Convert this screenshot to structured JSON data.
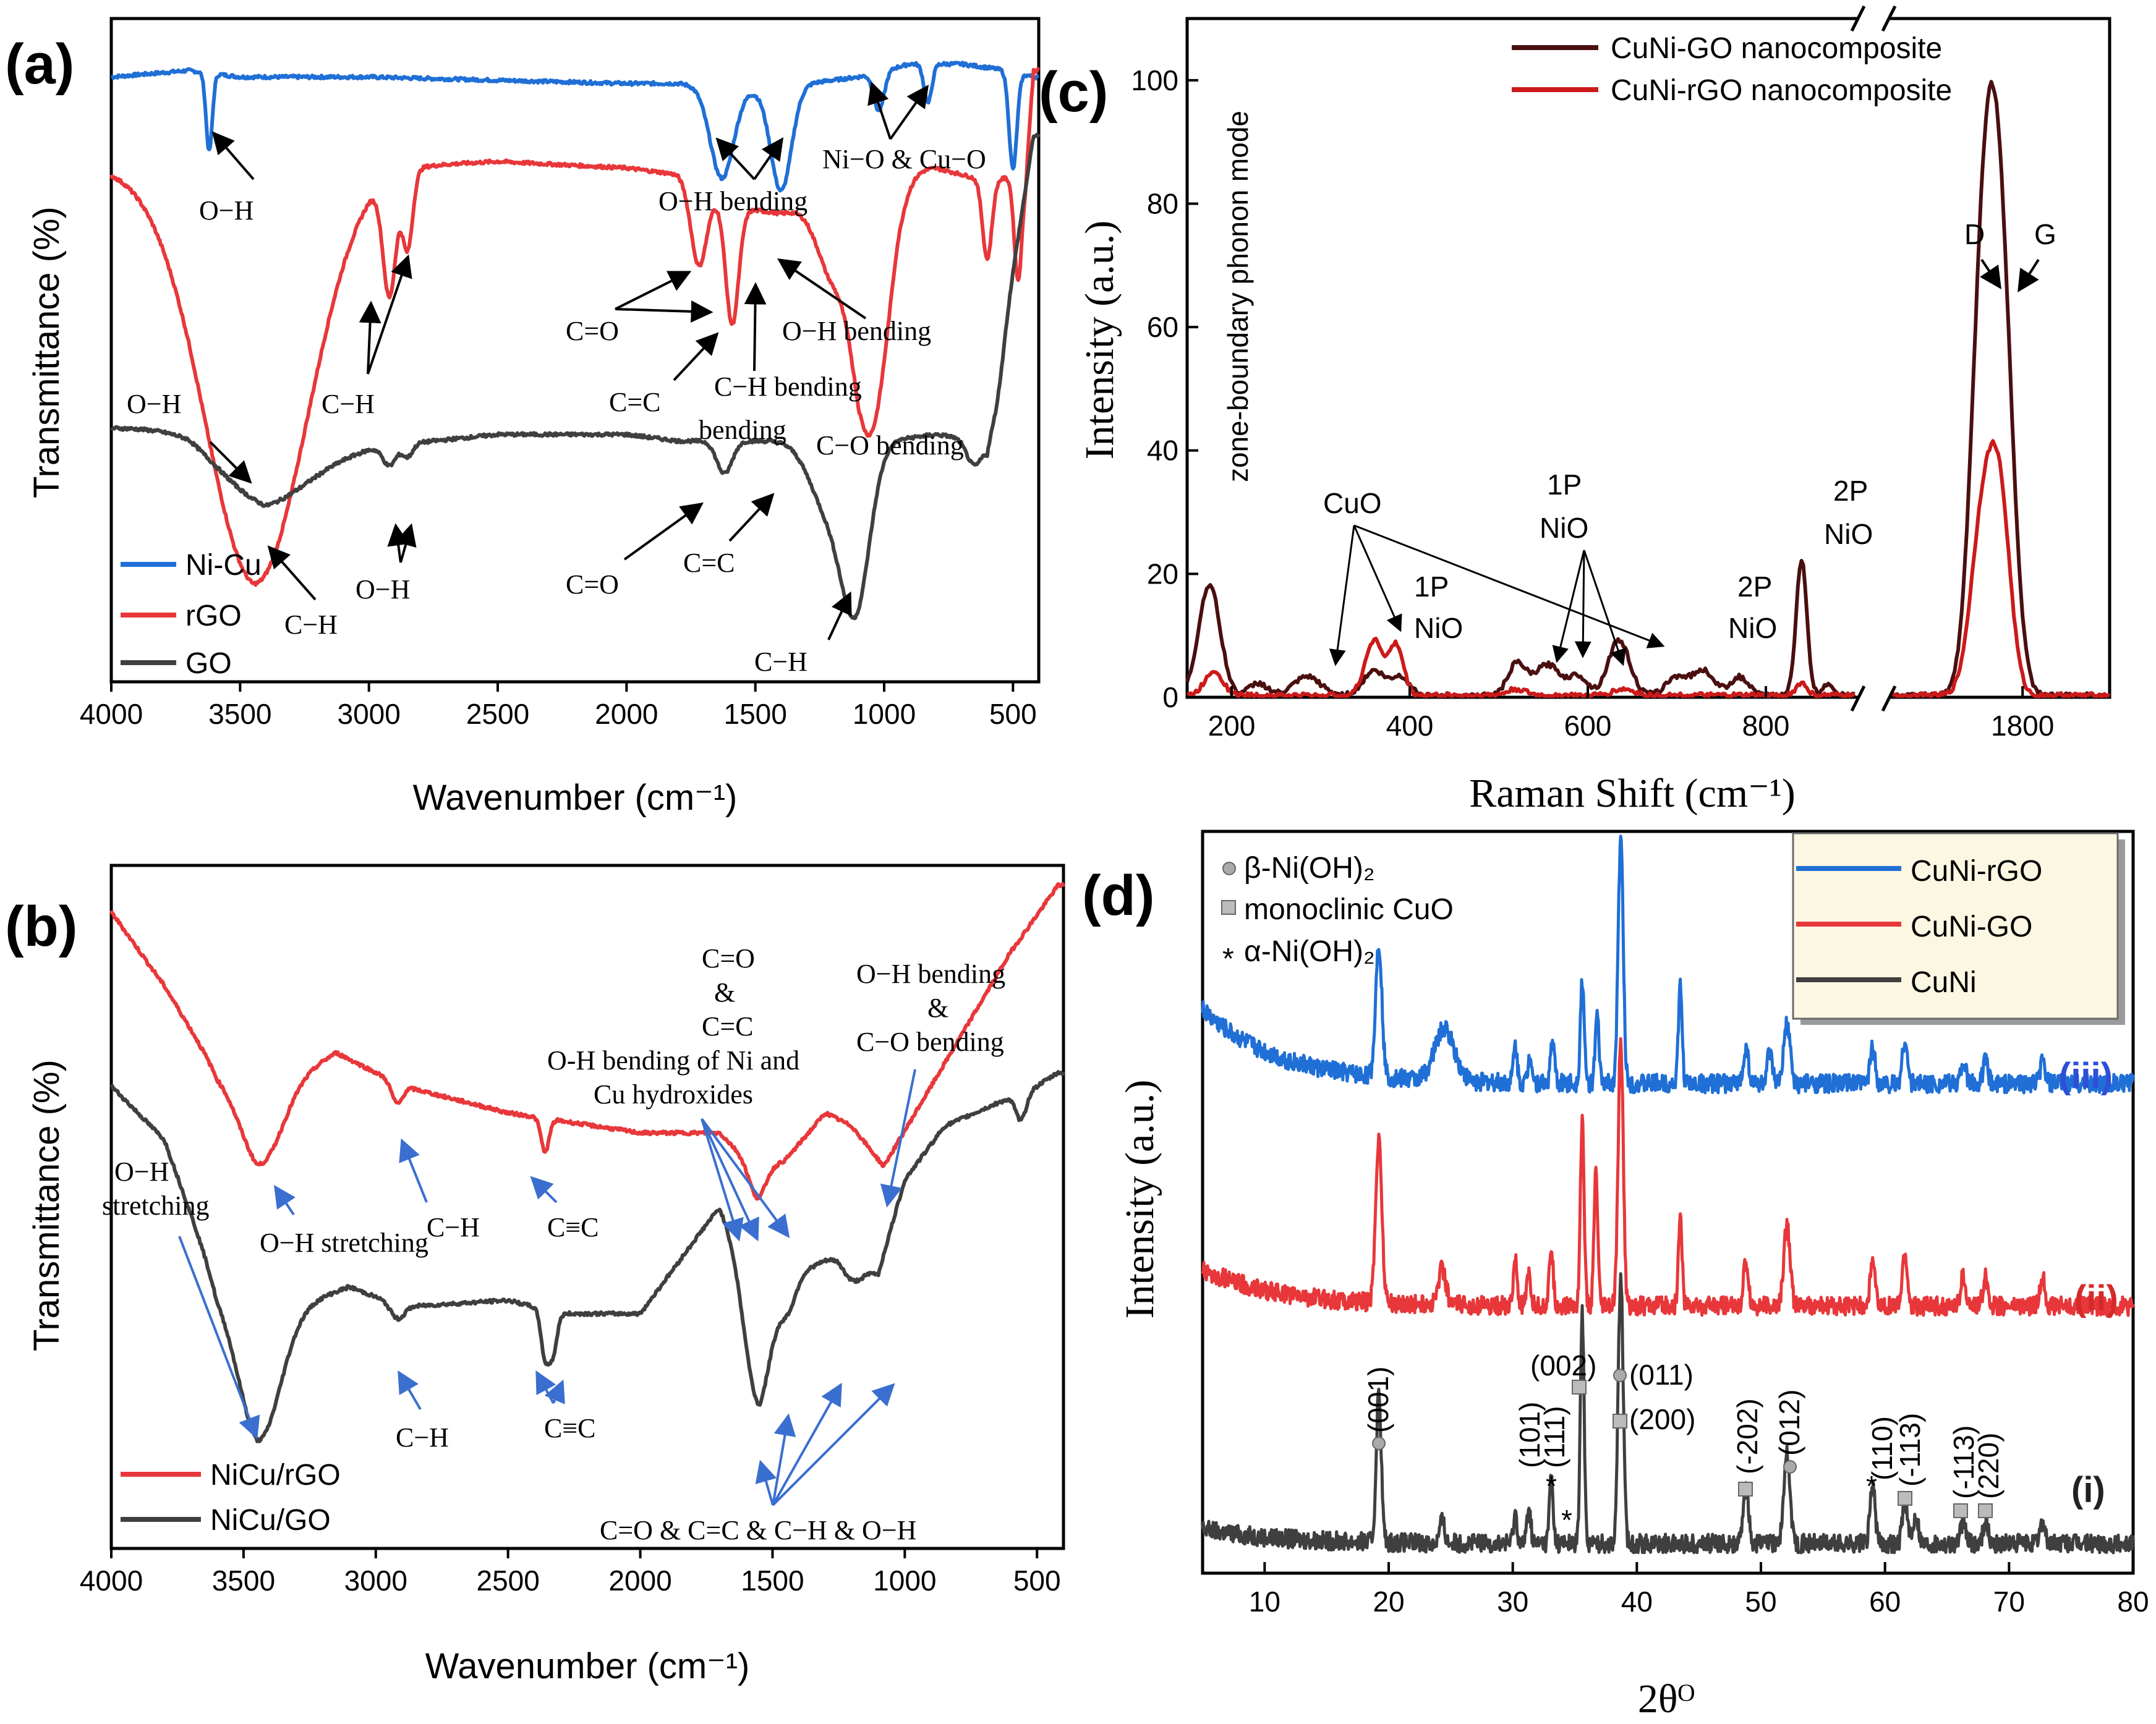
{
  "chart_data": [
    {
      "id": "a",
      "type": "line",
      "panel_label": "(a)",
      "xlabel": "Wavenumber (cm⁻¹)",
      "ylabel": "Transmittance (%)",
      "xlim": [
        4000,
        400
      ],
      "x_ticks": [
        "4000",
        "3500",
        "3000",
        "2500",
        "2000",
        "1500",
        "1000",
        "500"
      ],
      "legend_position": "bottom-left",
      "series": [
        {
          "name": "Ni-Cu",
          "color": "#1f6fd6",
          "offset": 90,
          "baseline": [
            [
              4000,
              94
            ],
            [
              3700,
              95
            ],
            [
              3500,
              94
            ],
            [
              3000,
              94
            ],
            [
              2000,
              93
            ],
            [
              1800,
              93
            ],
            [
              1500,
              92
            ],
            [
              1100,
              94
            ],
            [
              900,
              96
            ],
            [
              700,
              96
            ],
            [
              520,
              95
            ],
            [
              420,
              94
            ]
          ],
          "peaks": [
            [
              3620,
              12,
              12
            ],
            [
              1630,
              14,
              45
            ],
            [
              1400,
              16,
              40
            ],
            [
              1020,
              6,
              20
            ],
            [
              830,
              6,
              15
            ],
            [
              500,
              15,
              15
            ]
          ]
        },
        {
          "name": "rGO",
          "color": "#e8373a",
          "offset": 60,
          "baseline": [
            [
              4000,
              80
            ],
            [
              3700,
              79
            ],
            [
              3450,
              76
            ],
            [
              3200,
              78
            ],
            [
              3000,
              80
            ],
            [
              2500,
              81
            ],
            [
              2000,
              80
            ],
            [
              1800,
              79
            ],
            [
              1600,
              74
            ],
            [
              1400,
              73
            ],
            [
              1250,
              74
            ],
            [
              1100,
              70
            ],
            [
              950,
              80
            ],
            [
              800,
              80
            ],
            [
              600,
              78
            ],
            [
              450,
              79
            ],
            [
              420,
              95
            ]
          ],
          "peaks": [
            [
              3440,
              60,
              200
            ],
            [
              2920,
              18,
              25
            ],
            [
              2850,
              12,
              20
            ],
            [
              1720,
              12,
              30
            ],
            [
              1590,
              18,
              25
            ],
            [
              1220,
              8,
              50
            ],
            [
              1050,
              34,
              70
            ],
            [
              600,
              12,
              18
            ],
            [
              480,
              16,
              15
            ]
          ]
        },
        {
          "name": "GO",
          "color": "#3f3f3f",
          "offset": 30,
          "baseline": [
            [
              4000,
              40
            ],
            [
              3700,
              40
            ],
            [
              3500,
              36
            ],
            [
              3400,
              34
            ],
            [
              3000,
              37
            ],
            [
              2500,
              39
            ],
            [
              2000,
              39
            ],
            [
              1800,
              38
            ],
            [
              1400,
              38
            ],
            [
              1300,
              38
            ],
            [
              1000,
              38
            ],
            [
              800,
              39
            ],
            [
              600,
              38
            ],
            [
              420,
              85
            ]
          ],
          "peaks": [
            [
              3420,
              6,
              180
            ],
            [
              2920,
              3,
              25
            ],
            [
              2850,
              2,
              20
            ],
            [
              1620,
              5,
              30
            ],
            [
              1220,
              10,
              70
            ],
            [
              1110,
              24,
              55
            ],
            [
              650,
              4,
              30
            ],
            [
              560,
              4,
              25
            ]
          ]
        }
      ],
      "annotations": [
        "O−H",
        "O−H bending",
        "Ni−O & Cu−O",
        "C−H",
        "C=O",
        "C=C",
        "C−H bending",
        "O−H bending",
        "O−H",
        "C−O bending",
        "C−H",
        "O−H",
        "C=O",
        "C=C",
        "C−H"
      ]
    },
    {
      "id": "b",
      "type": "line",
      "panel_label": "(b)",
      "xlabel": "Wavenumber (cm⁻¹)",
      "ylabel": "Transmittance (%)",
      "xlim": [
        4000,
        400
      ],
      "x_ticks": [
        "4000",
        "3500",
        "3000",
        "2500",
        "2000",
        "1500",
        "1000",
        "500"
      ],
      "legend_position": "bottom-left",
      "series": [
        {
          "name": "NiCu/rGO",
          "color": "#e8373a",
          "baseline": [
            [
              4000,
              96
            ],
            [
              3800,
              85
            ],
            [
              3600,
              72
            ],
            [
              3450,
              68
            ],
            [
              3150,
              75
            ],
            [
              2900,
              70
            ],
            [
              2500,
              66
            ],
            [
              2000,
              63
            ],
            [
              1700,
              63
            ],
            [
              1550,
              57
            ],
            [
              1450,
              59
            ],
            [
              1300,
              66
            ],
            [
              1200,
              64
            ],
            [
              1080,
              58
            ],
            [
              900,
              70
            ],
            [
              600,
              90
            ],
            [
              420,
              100
            ]
          ],
          "peaks": [
            [
              3430,
              10,
              80
            ],
            [
              2920,
              3,
              20
            ],
            [
              2360,
              5,
              15
            ],
            [
              1560,
              4,
              30
            ]
          ]
        },
        {
          "name": "NiCu/GO",
          "color": "#3f3f3f",
          "baseline": [
            [
              4000,
              70
            ],
            [
              3800,
              62
            ],
            [
              3600,
              40
            ],
            [
              3450,
              35
            ],
            [
              3100,
              40
            ],
            [
              2900,
              37
            ],
            [
              2500,
              38
            ],
            [
              2300,
              36
            ],
            [
              2000,
              36
            ],
            [
              1700,
              52
            ],
            [
              1650,
              48
            ],
            [
              1550,
              38
            ],
            [
              1400,
              42
            ],
            [
              1250,
              45
            ],
            [
              1100,
              42
            ],
            [
              1000,
              56
            ],
            [
              850,
              64
            ],
            [
              500,
              70
            ],
            [
              420,
              72
            ]
          ],
          "peaks": [
            [
              3440,
              18,
              80
            ],
            [
              2920,
              2,
              25
            ],
            [
              2360,
              7,
              15
            ],
            [
              2330,
              6,
              15
            ],
            [
              1560,
              16,
              50
            ],
            [
              1440,
              4,
              30
            ],
            [
              1200,
              3,
              40
            ],
            [
              560,
              4,
              20
            ]
          ]
        }
      ],
      "annotations": [
        "O−H stretching",
        "C−H",
        "C≡C",
        "C=O",
        "&",
        "C=C",
        "O-H bending  of Ni and",
        "Cu hydroxides",
        "O−H bending",
        "&",
        "C−O bending",
        "O−H",
        "stretching",
        "C−H",
        "C≡C",
        "C=O & C=C & C−H & O−H"
      ]
    },
    {
      "id": "c",
      "type": "line",
      "panel_label": "(c)",
      "xlabel": "Raman Shift (cm⁻¹)",
      "ylabel": "Intensity (a.u.)",
      "ylim": [
        0,
        110
      ],
      "y_ticks": [
        "0",
        "20",
        "40",
        "60",
        "80",
        "100"
      ],
      "x_segments": [
        [
          150,
          900
        ],
        [
          1650,
          1900
        ]
      ],
      "x_ticks": [
        "200",
        "400",
        "600",
        "800",
        "1800"
      ],
      "legend_position": "top",
      "series": [
        {
          "name": "CuNi-GO nanocomposite",
          "color": "#4a0f0f",
          "peaks": [
            [
              175,
              18,
              12
            ],
            [
              230,
              2,
              10
            ],
            [
              285,
              3,
              15
            ],
            [
              360,
              4,
              12
            ],
            [
              390,
              3,
              10
            ],
            [
              520,
              5,
              10
            ],
            [
              555,
              5,
              15
            ],
            [
              590,
              3,
              10
            ],
            [
              635,
              9,
              12
            ],
            [
              700,
              3,
              12
            ],
            [
              730,
              4,
              12
            ],
            [
              770,
              3,
              10
            ],
            [
              840,
              22,
              6
            ],
            [
              870,
              2,
              6
            ],
            [
              1755,
              65,
              14
            ],
            [
              1775,
              63,
              14
            ]
          ]
        },
        {
          "name": "CuNi-rGO nanocomposite",
          "color": "#cc1a1a",
          "peaks": [
            [
              180,
              4,
              10
            ],
            [
              360,
              9,
              10
            ],
            [
              385,
              8,
              8
            ],
            [
              520,
              1,
              10
            ],
            [
              640,
              1,
              12
            ],
            [
              840,
              2,
              6
            ],
            [
              1755,
              29,
              14
            ],
            [
              1775,
              26,
              12
            ]
          ]
        }
      ],
      "annotations": [
        "zone-boundary phonon mode",
        "CuO",
        "1P",
        "NiO",
        "1P",
        "NiO",
        "2P",
        "NiO",
        "2P",
        "NiO",
        "D",
        "G"
      ]
    },
    {
      "id": "d",
      "type": "line",
      "panel_label": "(d)",
      "xlabel": "2θᴼ",
      "ylabel": "Intensity (a.u.)",
      "xlim": [
        5,
        80
      ],
      "x_ticks": [
        "10",
        "20",
        "30",
        "40",
        "50",
        "60",
        "70",
        "80"
      ],
      "legend_position": "top-right",
      "series": [
        {
          "name": "CuNi-rGO",
          "color": "#1f6fd6",
          "label": "(iii)",
          "baseline_level": 0.66,
          "peaks": [
            [
              19.2,
              0.18,
              0.25
            ],
            [
              24.5,
              0.07,
              0.8
            ],
            [
              30.2,
              0.05,
              0.15
            ],
            [
              31.4,
              0.04,
              0.15
            ],
            [
              33.2,
              0.06,
              0.15
            ],
            [
              35.6,
              0.14,
              0.15
            ],
            [
              36.8,
              0.09,
              0.15
            ],
            [
              38.7,
              0.33,
              0.2
            ],
            [
              43.5,
              0.13,
              0.15
            ],
            [
              48.8,
              0.05,
              0.2
            ],
            [
              50.7,
              0.04,
              0.2
            ],
            [
              52.1,
              0.08,
              0.25
            ],
            [
              59.0,
              0.05,
              0.2
            ],
            [
              61.6,
              0.06,
              0.2
            ],
            [
              66.3,
              0.03,
              0.2
            ],
            [
              68.1,
              0.03,
              0.2
            ],
            [
              72.7,
              0.03,
              0.2
            ]
          ]
        },
        {
          "name": "CuNi-GO",
          "color": "#e8373a",
          "label": "(ii)",
          "baseline_level": 0.36,
          "peaks": [
            [
              19.2,
              0.22,
              0.25
            ],
            [
              24.3,
              0.05,
              0.3
            ],
            [
              30.2,
              0.06,
              0.15
            ],
            [
              31.3,
              0.04,
              0.15
            ],
            [
              33.1,
              0.08,
              0.15
            ],
            [
              35.6,
              0.25,
              0.15
            ],
            [
              36.7,
              0.18,
              0.15
            ],
            [
              38.7,
              0.36,
              0.2
            ],
            [
              43.5,
              0.12,
              0.15
            ],
            [
              48.8,
              0.06,
              0.2
            ],
            [
              52.1,
              0.11,
              0.25
            ],
            [
              59.0,
              0.06,
              0.2
            ],
            [
              61.6,
              0.07,
              0.2
            ],
            [
              66.3,
              0.04,
              0.2
            ],
            [
              68.1,
              0.04,
              0.2
            ],
            [
              72.7,
              0.04,
              0.2
            ]
          ]
        },
        {
          "name": "CuNi",
          "color": "#3f3f3f",
          "label": "(i)",
          "baseline_level": 0.04,
          "peaks": [
            [
              19.2,
              0.2,
              0.2
            ],
            [
              24.3,
              0.03,
              0.2
            ],
            [
              30.2,
              0.04,
              0.15
            ],
            [
              31.3,
              0.05,
              0.15
            ],
            [
              33.1,
              0.09,
              0.15
            ],
            [
              35.6,
              0.31,
              0.15
            ],
            [
              38.7,
              0.36,
              0.2
            ],
            [
              48.8,
              0.08,
              0.2
            ],
            [
              52.1,
              0.12,
              0.25
            ],
            [
              59.0,
              0.08,
              0.2
            ],
            [
              61.6,
              0.06,
              0.2
            ],
            [
              62.5,
              0.04,
              0.2
            ],
            [
              66.3,
              0.03,
              0.2
            ],
            [
              68.1,
              0.03,
              0.2
            ],
            [
              72.7,
              0.03,
              0.2
            ]
          ]
        }
      ],
      "marker_legend": [
        "β-Ni(OH)₂",
        "monoclinic CuO",
        "α-Ni(OH)₂"
      ],
      "peak_labels": [
        "(001)",
        "(002)",
        "(011)",
        "(200)",
        "(101)",
        "(111)",
        "(-202)",
        "(012)",
        "(110)",
        "(-113)",
        "(-113)",
        "(220)"
      ]
    }
  ]
}
